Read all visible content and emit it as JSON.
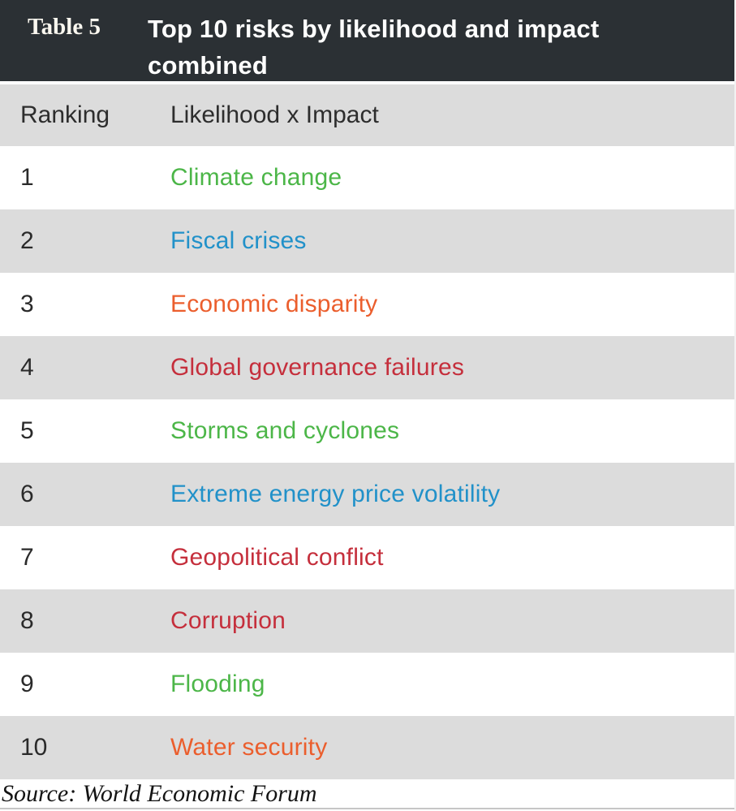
{
  "table": {
    "label": "Table 5",
    "title": "Top 10 risks by likelihood and impact combined",
    "columns": {
      "ranking": "Ranking",
      "risk": "Likelihood x Impact"
    },
    "rows": [
      {
        "rank": "1",
        "risk": "Climate change",
        "color": "#4cb648"
      },
      {
        "rank": "2",
        "risk": "Fiscal crises",
        "color": "#2191c9"
      },
      {
        "rank": "3",
        "risk": "Economic disparity",
        "color": "#eb5e2d"
      },
      {
        "rank": "4",
        "risk": "Global governance failures",
        "color": "#c52f3c"
      },
      {
        "rank": "5",
        "risk": "Storms and cyclones",
        "color": "#4cb648"
      },
      {
        "rank": "6",
        "risk": "Extreme energy price volatility",
        "color": "#2191c9"
      },
      {
        "rank": "7",
        "risk": "Geopolitical conflict",
        "color": "#c52f3c"
      },
      {
        "rank": "8",
        "risk": "Corruption",
        "color": "#c52f3c"
      },
      {
        "rank": "9",
        "risk": "Flooding",
        "color": "#4cb648"
      },
      {
        "rank": "10",
        "risk": "Water security",
        "color": "#eb5e2d"
      }
    ],
    "source": "Source: World Economic Forum",
    "colors": {
      "header_bar_bg": "#2b3034",
      "header_text": "#ffffff",
      "row_alt_bg": "#dcdcdc",
      "row_bg": "#ffffff",
      "green": "#4cb648",
      "blue": "#2191c9",
      "orange": "#eb5e2d",
      "red": "#c52f3c"
    }
  }
}
